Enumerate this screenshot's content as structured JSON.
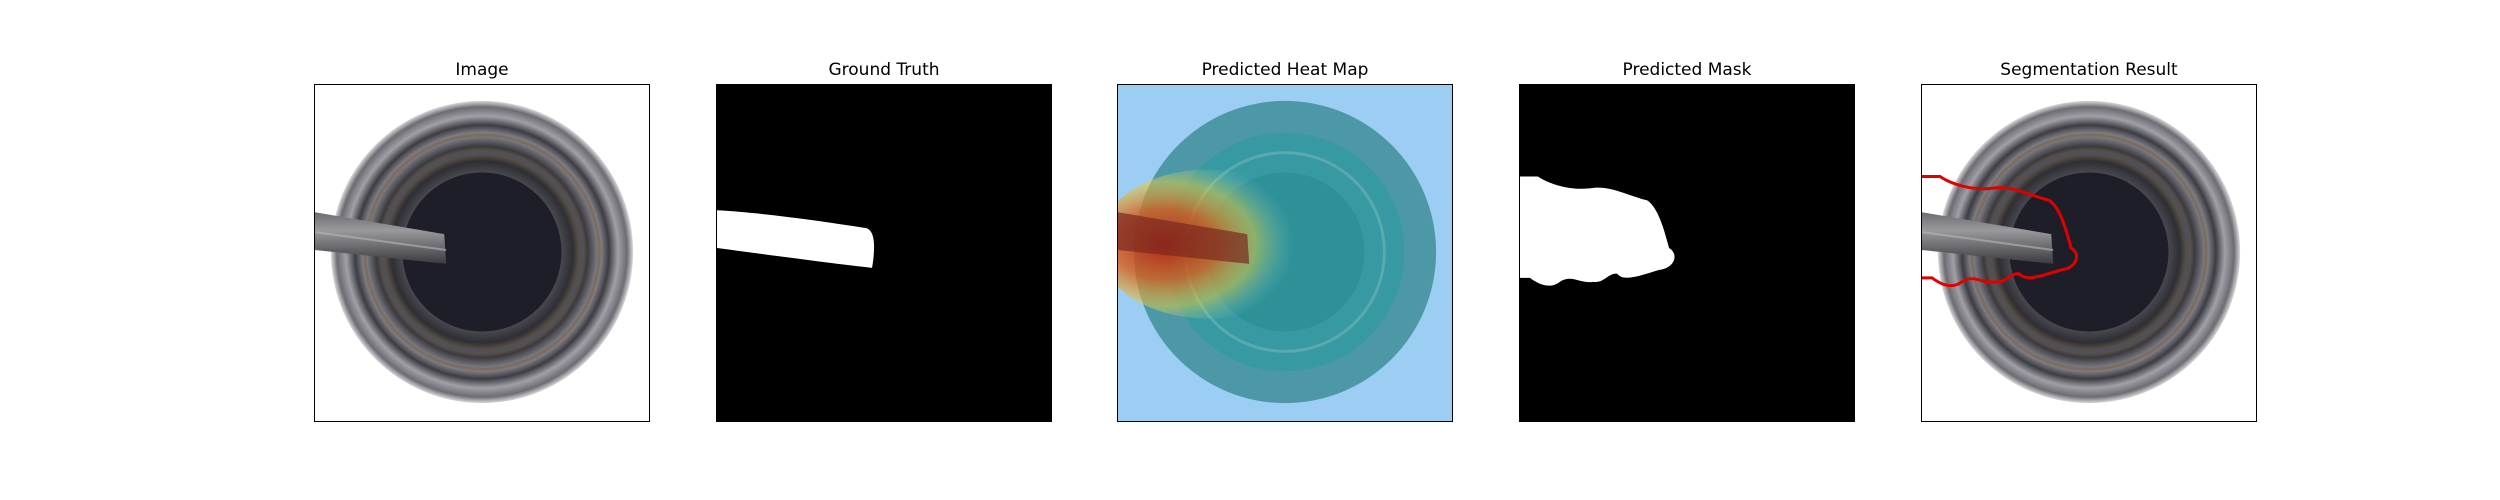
{
  "panels": [
    {
      "title": "Image"
    },
    {
      "title": "Ground Truth"
    },
    {
      "title": "Predicted Heat Map"
    },
    {
      "title": "Predicted Mask"
    },
    {
      "title": "Segmentation Result"
    }
  ],
  "colors": {
    "mask_background": "#000000",
    "mask_foreground": "#ffffff",
    "contour": "#e00000",
    "heat_background": "#9ccdf3"
  }
}
